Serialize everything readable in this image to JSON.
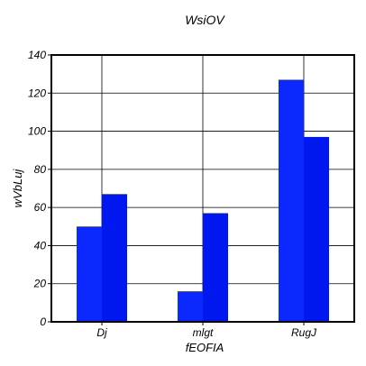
{
  "chart_data": {
    "type": "bar",
    "title": "WsiOV",
    "xlabel": "fEOFIA",
    "ylabel": "wVbLuj",
    "categories": [
      "Dj",
      "mlgt",
      "RugJ"
    ],
    "series": [
      {
        "values": [
          50,
          16,
          127
        ],
        "color": "#0a28ff"
      },
      {
        "values": [
          67,
          57,
          97
        ],
        "color": "#0018f0"
      }
    ],
    "ylim": [
      0,
      140
    ],
    "yticks": [
      0,
      20,
      40,
      60,
      80,
      100,
      120,
      140
    ],
    "grid": true,
    "legend": "none"
  }
}
